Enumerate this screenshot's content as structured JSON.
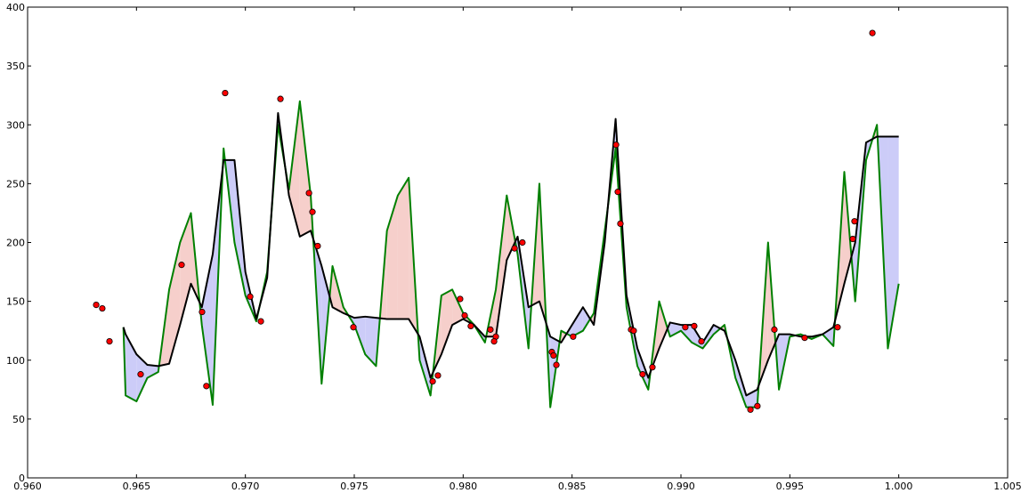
{
  "chart_data": {
    "type": "line",
    "x": [
      0.9644,
      0.9645,
      0.965,
      0.9655,
      0.966,
      0.9665,
      0.967,
      0.9675,
      0.968,
      0.9685,
      0.969,
      0.9695,
      0.97,
      0.9705,
      0.971,
      0.9715,
      0.972,
      0.9725,
      0.973,
      0.9735,
      0.974,
      0.9745,
      0.975,
      0.9755,
      0.976,
      0.9765,
      0.977,
      0.9775,
      0.978,
      0.9785,
      0.979,
      0.9795,
      0.98,
      0.9805,
      0.981,
      0.9815,
      0.982,
      0.9825,
      0.983,
      0.9835,
      0.984,
      0.9845,
      0.985,
      0.9855,
      0.986,
      0.9865,
      0.987,
      0.9875,
      0.988,
      0.9885,
      0.989,
      0.9895,
      0.99,
      0.9905,
      0.991,
      0.9915,
      0.992,
      0.9925,
      0.993,
      0.9935,
      0.994,
      0.9945,
      0.995,
      0.9955,
      0.996,
      0.9965,
      0.997,
      0.9975,
      0.998,
      0.9985,
      0.999,
      0.9995,
      1.0
    ],
    "series": [
      {
        "color": "#008000",
        "values": [
          128,
          70,
          65,
          85,
          90,
          160,
          200,
          225,
          130,
          62,
          280,
          200,
          155,
          133,
          175,
          300,
          245,
          320,
          240,
          80,
          180,
          145,
          130,
          105,
          95,
          210,
          240,
          255,
          100,
          70,
          155,
          160,
          140,
          130,
          115,
          160,
          240,
          190,
          110,
          250,
          60,
          125,
          120,
          125,
          140,
          210,
          280,
          145,
          95,
          75,
          150,
          120,
          125,
          115,
          110,
          122,
          130,
          85,
          60,
          60,
          200,
          75,
          120,
          122,
          118,
          122,
          112,
          260,
          150,
          270,
          300,
          110,
          165
        ]
      },
      {
        "color": "#000000",
        "values": [
          128,
          122,
          105,
          96,
          95,
          97,
          130,
          165,
          145,
          190,
          270,
          270,
          175,
          135,
          170,
          310,
          240,
          205,
          210,
          180,
          145,
          140,
          136,
          137,
          136,
          135,
          135,
          135,
          120,
          85,
          105,
          130,
          135,
          130,
          120,
          120,
          185,
          205,
          145,
          150,
          120,
          115,
          130,
          145,
          130,
          200,
          305,
          155,
          110,
          85,
          110,
          132,
          130,
          130,
          115,
          130,
          125,
          100,
          70,
          75,
          100,
          122,
          122,
          120,
          120,
          122,
          128,
          165,
          200,
          285,
          290,
          290,
          290
        ]
      }
    ],
    "fill_above_color": "#f6cfcb",
    "fill_below_color": "#ccccf8",
    "markers": {
      "color": "#ff0000",
      "x": [
        0.96315,
        0.96343,
        0.96376,
        0.96519,
        0.96707,
        0.96801,
        0.96821,
        0.96907,
        0.97022,
        0.97071,
        0.97161,
        0.97292,
        0.97308,
        0.97332,
        0.97496,
        0.9786,
        0.97884,
        0.97986,
        0.98007,
        0.98035,
        0.98125,
        0.9815,
        0.98142,
        0.98236,
        0.98272,
        0.98407,
        0.98415,
        0.98428,
        0.98505,
        0.98702,
        0.9871,
        0.98722,
        0.98771,
        0.98783,
        0.98824,
        0.98869,
        0.9902,
        0.99061,
        0.99094,
        0.99319,
        0.99351,
        0.99429,
        0.99568,
        0.99719,
        0.99789,
        0.99797,
        0.99879
      ],
      "y": [
        147,
        144,
        116,
        88,
        181,
        141,
        78,
        327,
        154,
        133,
        322,
        242,
        226,
        197,
        128,
        82,
        87,
        152,
        138,
        129,
        126,
        120,
        116,
        195,
        200,
        107,
        104,
        96,
        120,
        283,
        243,
        216,
        126,
        125,
        88,
        94,
        128,
        129,
        116,
        58,
        61,
        126,
        119,
        128,
        203,
        218,
        378
      ]
    },
    "xlim": [
      0.96,
      1.005
    ],
    "ylim": [
      0,
      400
    ],
    "xticks": [
      {
        "value": 0.96,
        "label": "0.960"
      },
      {
        "value": 0.965,
        "label": "0.965"
      },
      {
        "value": 0.97,
        "label": "0.970"
      },
      {
        "value": 0.975,
        "label": "0.975"
      },
      {
        "value": 0.98,
        "label": "0.980"
      },
      {
        "value": 0.985,
        "label": "0.985"
      },
      {
        "value": 0.99,
        "label": "0.990"
      },
      {
        "value": 0.995,
        "label": "0.995"
      },
      {
        "value": 1.0,
        "label": "1.000"
      },
      {
        "value": 1.005,
        "label": "1.005"
      }
    ],
    "yticks": [
      0,
      50,
      100,
      150,
      200,
      250,
      300,
      350,
      400
    ]
  }
}
